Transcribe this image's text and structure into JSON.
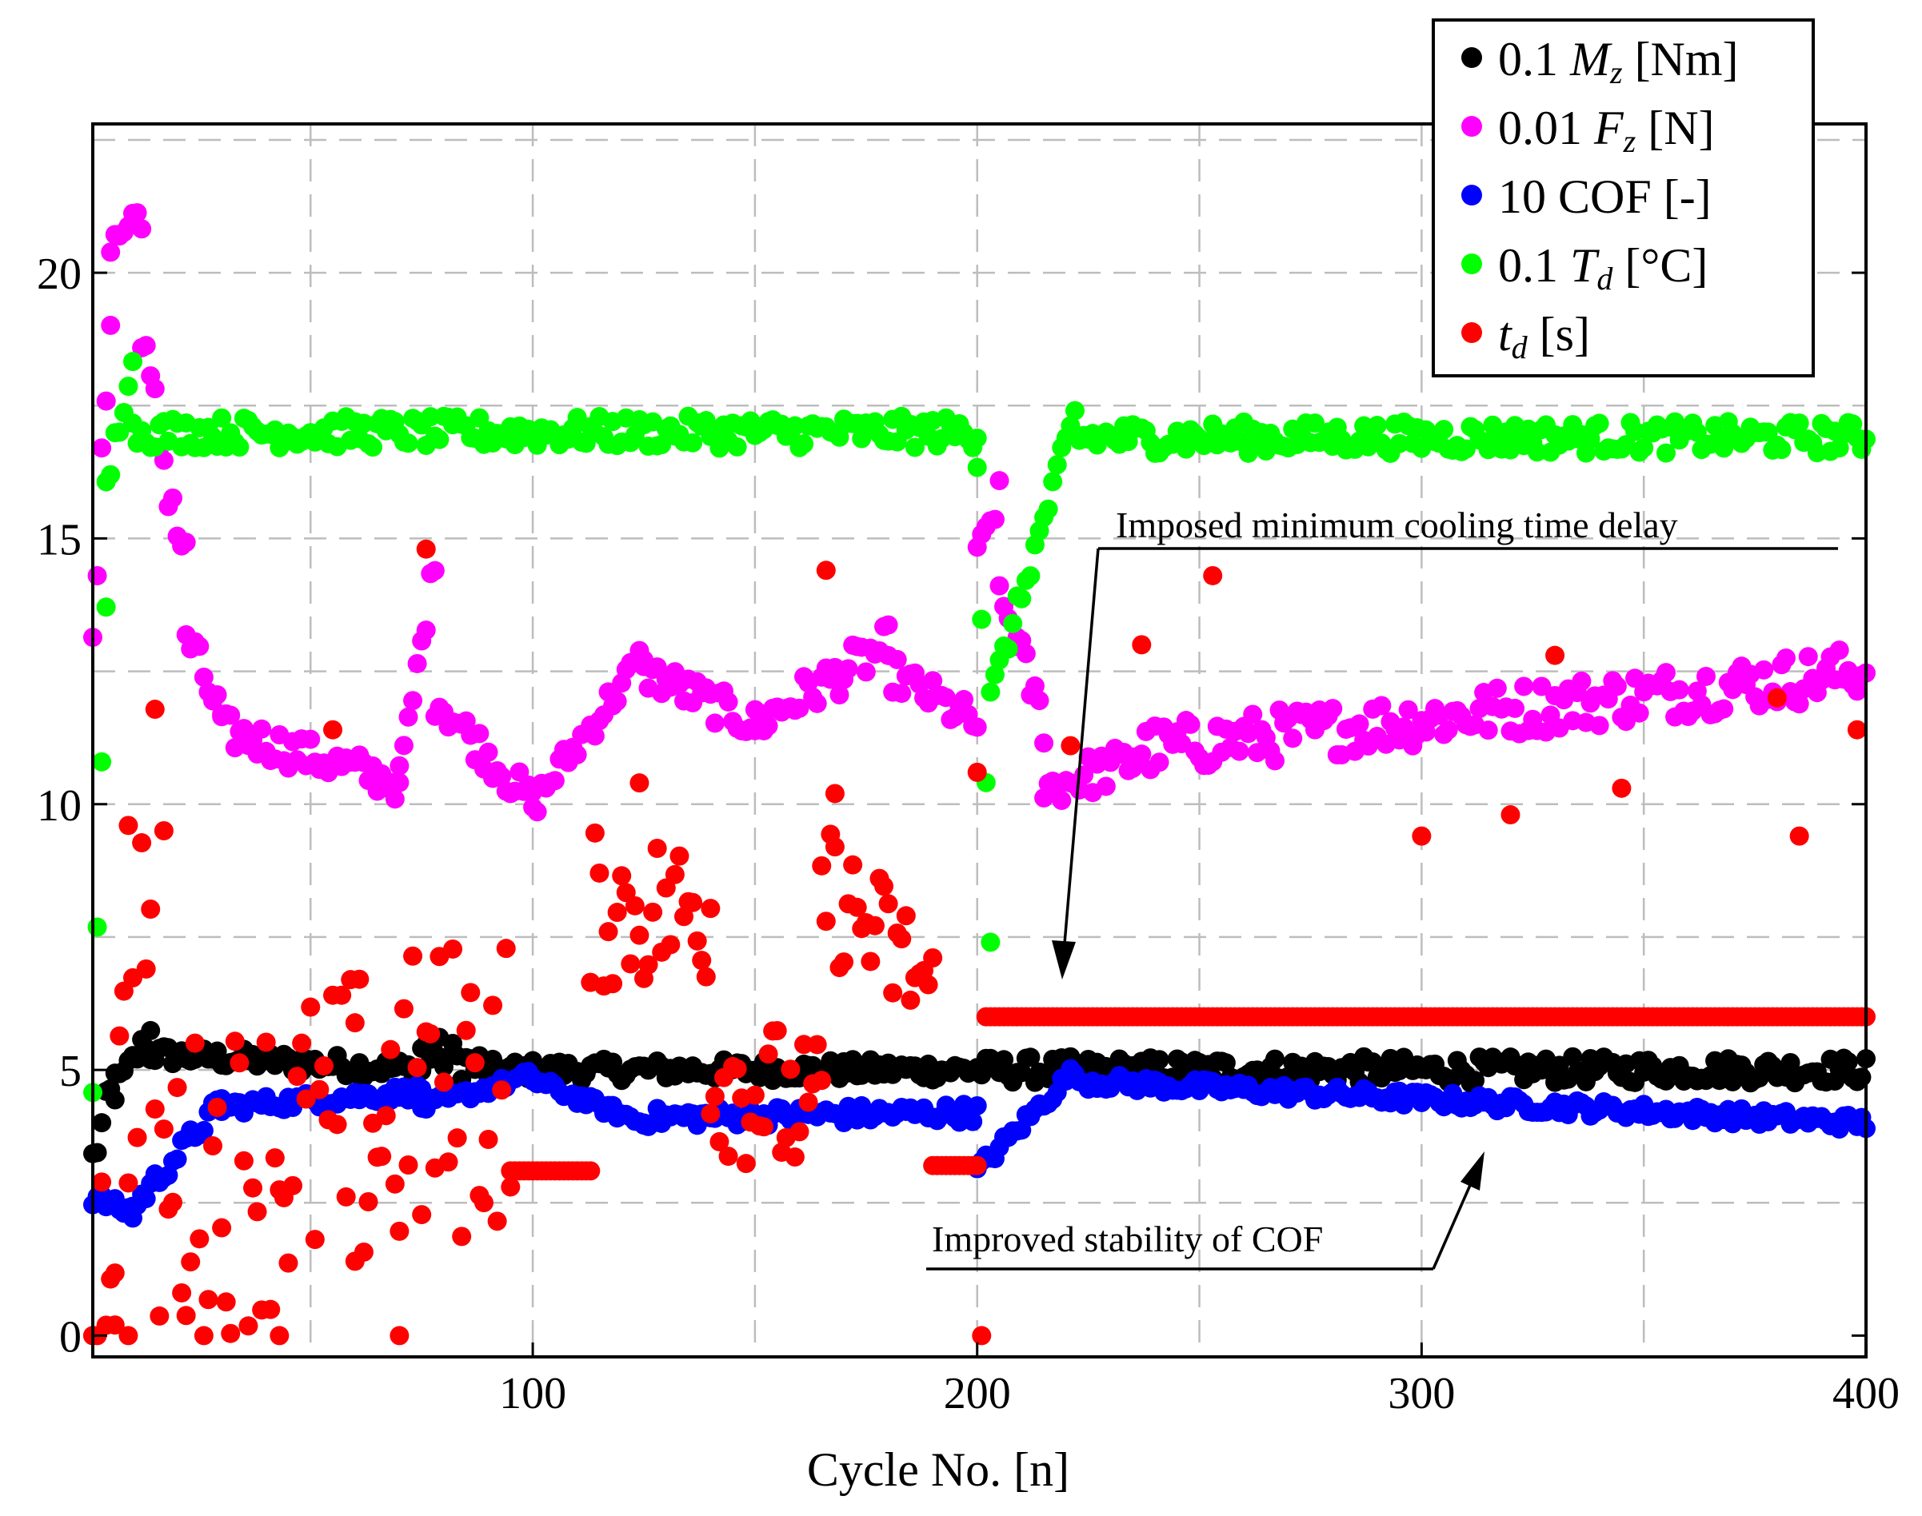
{
  "chart_data": {
    "type": "scatter",
    "title": "",
    "xlabel": "Cycle No. [n]",
    "ylabel": "",
    "xlim": [
      1,
      400
    ],
    "ylim": [
      -0.4,
      22.8
    ],
    "xticks": [
      100,
      200,
      300,
      400
    ],
    "yticks": [
      0,
      5,
      10,
      15,
      20
    ],
    "grid": true,
    "legend_position": "top-right",
    "colors": {
      "Mz": "#000000",
      "Fz": "#ff00ff",
      "COF": "#0000ff",
      "Td": "#00ff00",
      "td": "#ff0000"
    },
    "legend": [
      {
        "key": "Mz",
        "prefix": "0.1 ",
        "symbol": "M",
        "sub": "z",
        "unit": "  [Nm]"
      },
      {
        "key": "Fz",
        "prefix": "0.01 ",
        "symbol": "F",
        "sub": "z",
        "unit": "  [N]"
      },
      {
        "key": "COF",
        "prefix": "10 COF [-]",
        "symbol": "",
        "sub": "",
        "unit": ""
      },
      {
        "key": "Td",
        "prefix": "0.1 ",
        "symbol": "T",
        "sub": "d",
        "unit": "  [°C]"
      },
      {
        "key": "td",
        "prefix": "",
        "symbol": "t",
        "sub": "d",
        "unit": " [s]"
      }
    ],
    "annotations": [
      {
        "text": "Imposed minimum cooling time delay",
        "points_to": [
          220,
          6.2
        ]
      },
      {
        "text": "Improved stability of COF",
        "points_to": [
          315,
          3.3
        ]
      }
    ],
    "series": [
      {
        "name": "Mz",
        "label": "0.1 Mz [Nm]",
        "segments": [
          {
            "from": 1,
            "to": 6,
            "start": 3.3,
            "end": 4.8,
            "noise": 0.4
          },
          {
            "from": 6,
            "to": 14,
            "start": 4.6,
            "end": 5.7,
            "noise": 0.25
          },
          {
            "from": 14,
            "to": 75,
            "start": 5.3,
            "end": 5.0,
            "noise": 0.2
          },
          {
            "from": 75,
            "to": 90,
            "start": 5.4,
            "end": 5.0,
            "noise": 0.35
          },
          {
            "from": 90,
            "to": 200,
            "start": 5.0,
            "end": 5.0,
            "noise": 0.2
          },
          {
            "from": 200,
            "to": 400,
            "start": 5.0,
            "end": 5.0,
            "noise": 0.25
          }
        ]
      },
      {
        "name": "Fz",
        "label": "0.01 Fz [N]",
        "segments": [
          {
            "from": 1,
            "to": 5,
            "start": 12.8,
            "end": 19.5,
            "noise": 0.6
          },
          {
            "from": 5,
            "to": 12,
            "start": 20.5,
            "end": 21.2,
            "noise": 0.4
          },
          {
            "from": 12,
            "to": 22,
            "start": 18.5,
            "end": 14.5,
            "noise": 0.7
          },
          {
            "from": 22,
            "to": 30,
            "start": 13.2,
            "end": 11.6,
            "noise": 0.4
          },
          {
            "from": 30,
            "to": 70,
            "start": 11.4,
            "end": 10.4,
            "noise": 0.35
          },
          {
            "from": 70,
            "to": 78,
            "start": 10.4,
            "end": 14.6,
            "noise": 0.3
          },
          {
            "from": 78,
            "to": 100,
            "start": 12.0,
            "end": 10.0,
            "noise": 0.35
          },
          {
            "from": 100,
            "to": 125,
            "start": 10.0,
            "end": 12.8,
            "noise": 0.3
          },
          {
            "from": 125,
            "to": 150,
            "start": 12.5,
            "end": 11.5,
            "noise": 0.35
          },
          {
            "from": 150,
            "to": 180,
            "start": 11.5,
            "end": 13.0,
            "noise": 0.4
          },
          {
            "from": 180,
            "to": 200,
            "start": 12.5,
            "end": 11.5,
            "noise": 0.35
          },
          {
            "from": 200,
            "to": 205,
            "start": 14.6,
            "end": 15.8,
            "noise": 0.3
          },
          {
            "from": 205,
            "to": 215,
            "start": 14.0,
            "end": 11.5,
            "noise": 0.4
          },
          {
            "from": 215,
            "to": 235,
            "start": 10.3,
            "end": 10.8,
            "noise": 0.4
          },
          {
            "from": 235,
            "to": 400,
            "start": 11.0,
            "end": 12.5,
            "noise": 0.5
          }
        ]
      },
      {
        "name": "COF",
        "label": "10 COF [-]",
        "segments": [
          {
            "from": 1,
            "to": 10,
            "start": 2.6,
            "end": 2.3,
            "noise": 0.15
          },
          {
            "from": 10,
            "to": 30,
            "start": 2.4,
            "end": 4.4,
            "noise": 0.2
          },
          {
            "from": 30,
            "to": 75,
            "start": 4.3,
            "end": 4.6,
            "noise": 0.15
          },
          {
            "from": 75,
            "to": 100,
            "start": 4.3,
            "end": 4.9,
            "noise": 0.12
          },
          {
            "from": 100,
            "to": 125,
            "start": 4.8,
            "end": 4.0,
            "noise": 0.12
          },
          {
            "from": 125,
            "to": 200,
            "start": 4.1,
            "end": 4.2,
            "noise": 0.18
          },
          {
            "from": 200,
            "to": 222,
            "start": 3.1,
            "end": 5.0,
            "noise": 0.15
          },
          {
            "from": 222,
            "to": 400,
            "start": 4.8,
            "end": 4.0,
            "noise": 0.15
          }
        ]
      },
      {
        "name": "Td",
        "label": "0.1 Td [°C]",
        "segments": [
          {
            "from": 1,
            "to": 4,
            "start": 4.7,
            "end": 13.6,
            "noise": 0.2
          },
          {
            "from": 4,
            "to": 10,
            "start": 15.8,
            "end": 18.7,
            "noise": 0.4
          },
          {
            "from": 10,
            "to": 200,
            "start": 17.0,
            "end": 17.0,
            "noise": 0.3
          },
          {
            "from": 200,
            "to": 203,
            "start": 16.5,
            "end": 7.5,
            "noise": 0.2
          },
          {
            "from": 203,
            "to": 222,
            "start": 12.0,
            "end": 17.3,
            "noise": 0.25
          },
          {
            "from": 222,
            "to": 400,
            "start": 16.9,
            "end": 16.9,
            "noise": 0.3
          }
        ]
      },
      {
        "name": "td",
        "label": "td [s]",
        "segments": [
          {
            "from": 1,
            "to": 15,
            "start": 0.1,
            "end": 9.0,
            "noise": 3.0
          },
          {
            "from": 15,
            "to": 95,
            "start": 2.5,
            "end": 5.0,
            "noise": 3.0
          },
          {
            "from": 95,
            "to": 113,
            "start": 3.1,
            "end": 3.1,
            "noise": 0.0
          },
          {
            "from": 113,
            "to": 140,
            "start": 8.0,
            "end": 8.0,
            "noise": 1.5
          },
          {
            "from": 140,
            "to": 165,
            "start": 5.0,
            "end": 4.0,
            "noise": 1.5
          },
          {
            "from": 165,
            "to": 190,
            "start": 8.5,
            "end": 6.5,
            "noise": 1.3
          },
          {
            "from": 190,
            "to": 200,
            "start": 3.2,
            "end": 3.2,
            "noise": 0.0
          },
          {
            "from": 202,
            "to": 400,
            "start": 6.0,
            "end": 6.0,
            "noise": 0.0
          }
        ],
        "outliers": [
          [
            1,
            0.0
          ],
          [
            6,
            0.2
          ],
          [
            9,
            0.0
          ],
          [
            76,
            14.8
          ],
          [
            166,
            14.4
          ],
          [
            253,
            14.3
          ],
          [
            237,
            13.0
          ],
          [
            200,
            10.6
          ],
          [
            55,
            11.4
          ],
          [
            9,
            9.6
          ],
          [
            17,
            9.5
          ],
          [
            201,
            0.0
          ],
          [
            124,
            10.4
          ],
          [
            168,
            10.2
          ],
          [
            330,
            12.8
          ],
          [
            380,
            12.0
          ],
          [
            398,
            11.4
          ],
          [
            221,
            11.1
          ],
          [
            385,
            9.4
          ],
          [
            320,
            9.8
          ],
          [
            300,
            9.4
          ],
          [
            345,
            10.3
          ],
          [
            60,
            1.4
          ],
          [
            70,
            0.0
          ],
          [
            43,
            0.0
          ]
        ]
      }
    ]
  }
}
